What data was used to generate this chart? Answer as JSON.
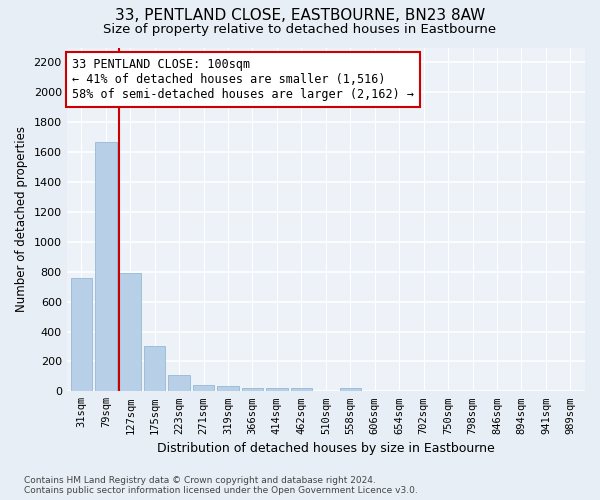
{
  "title": "33, PENTLAND CLOSE, EASTBOURNE, BN23 8AW",
  "subtitle": "Size of property relative to detached houses in Eastbourne",
  "xlabel": "Distribution of detached houses by size in Eastbourne",
  "ylabel": "Number of detached properties",
  "footer_line1": "Contains HM Land Registry data © Crown copyright and database right 2024.",
  "footer_line2": "Contains public sector information licensed under the Open Government Licence v3.0.",
  "categories": [
    "31sqm",
    "79sqm",
    "127sqm",
    "175sqm",
    "223sqm",
    "271sqm",
    "319sqm",
    "366sqm",
    "414sqm",
    "462sqm",
    "510sqm",
    "558sqm",
    "606sqm",
    "654sqm",
    "702sqm",
    "750sqm",
    "798sqm",
    "846sqm",
    "894sqm",
    "941sqm",
    "989sqm"
  ],
  "values": [
    760,
    1670,
    790,
    300,
    110,
    45,
    35,
    25,
    20,
    20,
    0,
    20,
    0,
    0,
    0,
    0,
    0,
    0,
    0,
    0,
    0
  ],
  "bar_color": "#b8cfe8",
  "bar_edge_color": "#8ab0d0",
  "vline_x": 1.55,
  "vline_color": "#cc0000",
  "ylim": [
    0,
    2300
  ],
  "yticks": [
    0,
    200,
    400,
    600,
    800,
    1000,
    1200,
    1400,
    1600,
    1800,
    2000,
    2200
  ],
  "annotation_box_text": "33 PENTLAND CLOSE: 100sqm\n← 41% of detached houses are smaller (1,516)\n58% of semi-detached houses are larger (2,162) →",
  "annotation_box_color": "#cc0000",
  "bg_color": "#e8eef5",
  "plot_bg_color": "#edf2f8",
  "title_fontsize": 11,
  "subtitle_fontsize": 9.5,
  "annotation_fontsize": 8.5
}
